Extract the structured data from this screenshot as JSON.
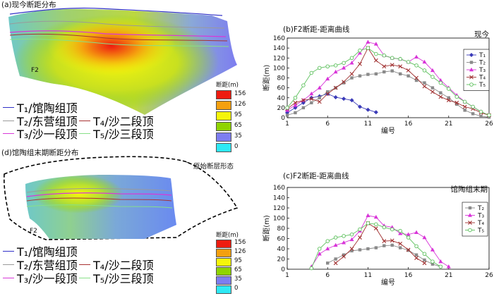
{
  "panel_a": {
    "title": "(a)现今断距分布",
    "fault_label": "F2",
    "colorbar": {
      "title": "断距(m)",
      "levels": [
        "156",
        "126",
        "95",
        "65",
        "35",
        "0"
      ],
      "colors": [
        "#ee1c10",
        "#f5a00f",
        "#f5f50a",
        "#8fd400",
        "#7d7df0",
        "#2ee9f5"
      ]
    },
    "legend": [
      {
        "label": "T₁/馆陶组顶",
        "color": "#3030c8"
      },
      {
        "label": "T₂/东营组顶",
        "color": "#9a9a9a"
      },
      {
        "label": "T₄/沙二段顶",
        "color": "#a83232"
      },
      {
        "label": "T₃/沙一段顶",
        "color": "#d838d8"
      },
      {
        "label": "T₅/沙三段顶",
        "color": "#88e088"
      }
    ]
  },
  "panel_d": {
    "title": "(d)馆陶组末期断距分布",
    "annotation": "原始断层形态",
    "fault_label": "F2",
    "colorbar": {
      "title": "断距(m)",
      "levels": [
        "156",
        "126",
        "95",
        "65",
        "35",
        "0"
      ],
      "colors": [
        "#ee1c10",
        "#f5a00f",
        "#f5f50a",
        "#8fd400",
        "#7d7df0",
        "#2ee9f5"
      ]
    },
    "legend": [
      {
        "label": "T₁/馆陶组顶",
        "color": "#3030c8"
      },
      {
        "label": "T₂/东营组顶",
        "color": "#9a9a9a"
      },
      {
        "label": "T₄/沙二段顶",
        "color": "#a83232"
      },
      {
        "label": "T₃/沙一段顶",
        "color": "#d838d8"
      },
      {
        "label": "T₅/沙三段顶",
        "color": "#88e088"
      }
    ]
  },
  "chart_data": [
    {
      "type": "line",
      "title": "(b)F2断距-距离曲线",
      "subtitle": "现今",
      "xlabel": "编号",
      "ylabel": "断距(m)",
      "xlim": [
        1,
        26
      ],
      "ylim": [
        0,
        160
      ],
      "xticks": [
        1,
        6,
        11,
        16,
        21,
        26
      ],
      "yticks": [
        0,
        20,
        40,
        60,
        80,
        100,
        120,
        140,
        160
      ],
      "legend_position": "right",
      "series": [
        {
          "name": "T₁",
          "color": "#3a3ab8",
          "marker": "diamond",
          "x": [
            1,
            2,
            3,
            4,
            5,
            6,
            7,
            8,
            9,
            10,
            11,
            12
          ],
          "y": [
            10,
            20,
            30,
            40,
            43,
            48,
            41,
            38,
            35,
            22,
            16,
            11
          ]
        },
        {
          "name": "T₂",
          "color": "#8a8a8a",
          "marker": "square",
          "x": [
            1,
            2,
            3,
            4,
            5,
            6,
            7,
            8,
            9,
            10,
            11,
            12,
            13,
            14,
            15,
            16,
            17,
            18,
            19,
            20,
            21,
            22,
            23,
            24,
            25,
            26
          ],
          "y": [
            5,
            10,
            20,
            30,
            40,
            52,
            60,
            70,
            80,
            84,
            87,
            88,
            92,
            94,
            88,
            84,
            75,
            70,
            60,
            50,
            40,
            27,
            15,
            8,
            3,
            1
          ]
        },
        {
          "name": "T₃",
          "color": "#d833d8",
          "marker": "triangle",
          "x": [
            1,
            2,
            3,
            4,
            5,
            6,
            7,
            8,
            9,
            10,
            11,
            12,
            13,
            14,
            15,
            16,
            17,
            18,
            19,
            20,
            21,
            22,
            23,
            24,
            25,
            26
          ],
          "y": [
            15,
            25,
            35,
            48,
            60,
            78,
            92,
            100,
            110,
            130,
            152,
            148,
            125,
            120,
            118,
            112,
            122,
            112,
            95,
            75,
            60,
            45,
            32,
            22,
            12,
            5
          ]
        },
        {
          "name": "T₄",
          "color": "#a03030",
          "marker": "cross",
          "x": [
            1,
            2,
            3,
            4,
            5,
            6,
            7,
            8,
            9,
            10,
            11,
            12,
            13,
            14,
            15,
            16,
            17,
            18,
            19,
            20,
            21,
            22,
            23,
            24,
            25,
            26
          ],
          "y": [
            18,
            30,
            35,
            38,
            32,
            48,
            60,
            72,
            88,
            108,
            140,
            115,
            103,
            106,
            103,
            95,
            80,
            63,
            52,
            42,
            35,
            30,
            22,
            18,
            10,
            5
          ]
        },
        {
          "name": "T₅",
          "color": "#5cc05c",
          "marker": "circle",
          "x": [
            1,
            2,
            3,
            4,
            5,
            6,
            7,
            8,
            9,
            10,
            11,
            12,
            13,
            14,
            15,
            16,
            17,
            18,
            19,
            20,
            21,
            22,
            23,
            24,
            25,
            26
          ],
          "y": [
            20,
            40,
            65,
            90,
            100,
            103,
            105,
            110,
            120,
            135,
            140,
            128,
            125,
            120,
            118,
            112,
            105,
            95,
            82,
            70,
            58,
            42,
            32,
            22,
            12,
            5
          ]
        }
      ]
    },
    {
      "type": "line",
      "title": "(c)F2断距-距离曲线",
      "subtitle": "馆陶组末期",
      "xlabel": "编号",
      "ylabel": "断距(m)",
      "xlim": [
        1,
        26
      ],
      "ylim": [
        0,
        160
      ],
      "xticks": [
        1,
        6,
        11,
        16,
        21,
        26
      ],
      "yticks": [
        0,
        20,
        40,
        60,
        80,
        100,
        120,
        140,
        160
      ],
      "legend_position": "right",
      "series": [
        {
          "name": "T₂",
          "color": "#8a8a8a",
          "marker": "square",
          "x": [
            6,
            7,
            8,
            9,
            10,
            11,
            12,
            13,
            14,
            15,
            16,
            17,
            18,
            19,
            20
          ],
          "y": [
            12,
            20,
            28,
            36,
            38,
            40,
            42,
            46,
            47,
            42,
            37,
            28,
            18,
            10,
            5
          ]
        },
        {
          "name": "T₃",
          "color": "#d833d8",
          "marker": "triangle",
          "x": [
            4,
            5,
            6,
            7,
            8,
            9,
            10,
            11,
            12,
            13,
            14,
            15,
            16,
            17,
            18,
            19,
            20,
            21
          ],
          "y": [
            5,
            30,
            40,
            47,
            52,
            58,
            75,
            105,
            102,
            85,
            82,
            70,
            68,
            72,
            62,
            38,
            15,
            5
          ]
        },
        {
          "name": "T₄",
          "color": "#a03030",
          "marker": "cross",
          "x": [
            7,
            8,
            9,
            10,
            11,
            12,
            13,
            14,
            15,
            16,
            17,
            18
          ],
          "y": [
            12,
            25,
            40,
            62,
            90,
            80,
            55,
            56,
            50,
            38,
            22,
            12
          ]
        },
        {
          "name": "T₅",
          "color": "#5cc05c",
          "marker": "circle",
          "x": [
            4,
            5,
            6,
            7,
            8,
            9,
            10,
            11,
            12,
            13,
            14,
            15,
            16,
            17,
            18,
            19,
            20
          ],
          "y": [
            2,
            40,
            55,
            62,
            65,
            68,
            78,
            90,
            88,
            82,
            78,
            75,
            62,
            45,
            30,
            15,
            5
          ]
        }
      ]
    }
  ]
}
